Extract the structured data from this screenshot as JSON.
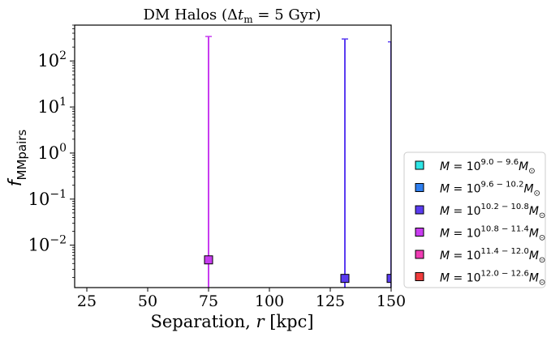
{
  "chart_data": {
    "type": "scatter",
    "title": "DM Halos (Δt_m = 5 Gyr)",
    "title_parts": {
      "prefix": "DM Halos (Δ",
      "t": "t",
      "sub": "m",
      "suffix": " = 5 Gyr)"
    },
    "xlabel": "Separation, r [kpc]",
    "xlabel_parts": {
      "prefix": "Separation, ",
      "var": "r",
      "suffix": " [kpc]"
    },
    "ylabel": "f_MMpairs",
    "ylabel_parts": {
      "main": "f",
      "sub": "MMpairs"
    },
    "x_scale": "linear",
    "y_scale": "log",
    "xlim": [
      20,
      150
    ],
    "ylim": [
      0.0012,
      600
    ],
    "x_ticks": [
      25,
      50,
      75,
      100,
      125,
      150
    ],
    "x_tick_labels": [
      "25",
      "50",
      "75",
      "100",
      "125",
      "150"
    ],
    "y_ticks": [
      0.01,
      0.1,
      1,
      10,
      100
    ],
    "y_tick_labels": [
      {
        "base": "10",
        "exp": "−2"
      },
      {
        "base": "10",
        "exp": "−1"
      },
      {
        "base": "10",
        "exp": "0"
      },
      {
        "base": "10",
        "exp": "1"
      },
      {
        "base": "10",
        "exp": "2"
      }
    ],
    "grid": false,
    "legend_position": "outside-right-bottom",
    "series": [
      {
        "name": "M = 10^{9.0−9.6} M☉",
        "label_exp": "9.0 − 9.6",
        "color": "#2ee6e6",
        "points": []
      },
      {
        "name": "M = 10^{9.6−10.2} M☉",
        "label_exp": "9.6 − 10.2",
        "color": "#2e7ff0",
        "points": []
      },
      {
        "name": "M = 10^{10.2−10.8} M☉",
        "label_exp": "10.2 − 10.8",
        "color": "#5a3cf0",
        "points": [
          {
            "x": 131,
            "y": 0.0019,
            "yerr_upper": 300
          },
          {
            "x": 150,
            "y": 0.0019,
            "yerr_upper": 260
          }
        ]
      },
      {
        "name": "M = 10^{10.8−11.4} M☉",
        "label_exp": "10.8 − 11.4",
        "color": "#c83cf0",
        "points": [
          {
            "x": 75,
            "y": 0.0048,
            "yerr_upper": 340
          }
        ]
      },
      {
        "name": "M = 10^{11.4−12.0} M☉",
        "label_exp": "11.4 − 12.0",
        "color": "#f03cb4",
        "points": []
      },
      {
        "name": "M = 10^{12.0−12.6} M☉",
        "label_exp": "12.0 − 12.6",
        "color": "#f03c3c",
        "points": []
      }
    ]
  }
}
